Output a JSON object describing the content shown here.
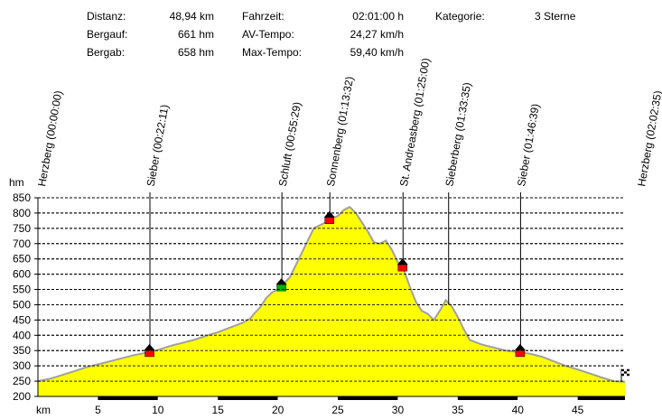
{
  "stats": {
    "distance_label": "Distanz:",
    "distance_value": "48,94 km",
    "ascent_label": "Bergauf:",
    "ascent_value": "661 hm",
    "descent_label": "Bergab:",
    "descent_value": "658 hm",
    "time_label": "Fahrzeit:",
    "time_value": "02:01:00 h",
    "avg_label": "AV-Tempo:",
    "avg_value": "24,27 km/h",
    "max_label": "Max-Tempo:",
    "max_value": "59,40 km/h",
    "category_label": "Kategorie:",
    "category_value": "3 Sterne"
  },
  "chart_data": {
    "type": "area",
    "xlabel": "km",
    "ylabel": "hm",
    "xlim": [
      0,
      48.94
    ],
    "ylim": [
      200,
      850
    ],
    "y_ticks": [
      200,
      250,
      300,
      350,
      400,
      450,
      500,
      550,
      600,
      650,
      700,
      750,
      800,
      850
    ],
    "x_ticks": [
      5,
      10,
      15,
      20,
      25,
      30,
      35,
      40,
      45
    ],
    "fill_color": "#ffff00",
    "line_color": "#a0a0a0",
    "profile": {
      "x": [
        0,
        1,
        2,
        3,
        4,
        5,
        6,
        7,
        8,
        9.3,
        10,
        11,
        12,
        13,
        14,
        15,
        16,
        17,
        17.7,
        18,
        18.5,
        19,
        19.5,
        20,
        20.3,
        21,
        21.5,
        22,
        22.5,
        23,
        24,
        24.3,
        25,
        25.5,
        26,
        26.5,
        27,
        27.5,
        28,
        28.5,
        29,
        29.5,
        30,
        30.4,
        31,
        31.5,
        32,
        32.5,
        33,
        33.5,
        34,
        34.5,
        35,
        35.5,
        36,
        37,
        38,
        39,
        40,
        41,
        42,
        43,
        44,
        45,
        46,
        47,
        48,
        48.94
      ],
      "y": [
        250,
        258,
        270,
        282,
        295,
        305,
        315,
        325,
        335,
        345,
        352,
        365,
        375,
        385,
        398,
        410,
        425,
        440,
        455,
        470,
        490,
        520,
        540,
        550,
        560,
        590,
        630,
        670,
        710,
        750,
        770,
        780,
        790,
        810,
        820,
        800,
        770,
        740,
        705,
        700,
        710,
        680,
        640,
        625,
        560,
        510,
        480,
        470,
        450,
        480,
        515,
        495,
        460,
        420,
        385,
        370,
        360,
        350,
        345,
        340,
        330,
        315,
        300,
        288,
        275,
        262,
        250,
        248
      ]
    },
    "waypoints": [
      {
        "label": "Herzberg (00:00:00)",
        "km": 0
      },
      {
        "label": "Sieber (00:22:11)",
        "km": 9.3,
        "elevation": 345,
        "marker": "red"
      },
      {
        "label": "Schluft (00:55:29)",
        "km": 20.3,
        "elevation": 560,
        "marker": "green"
      },
      {
        "label": "Sonnenberg (01:13:32)",
        "km": 24.3,
        "elevation": 780,
        "marker": "red"
      },
      {
        "label": "St. Andreasberg (01:25:00)",
        "km": 30.4,
        "elevation": 625,
        "marker": "red"
      },
      {
        "label": "Sieberberg (01:33:35)",
        "km": 34.2
      },
      {
        "label": "Sieber (01:46:39)",
        "km": 40.2,
        "elevation": 345,
        "marker": "red"
      },
      {
        "label": "Herzberg (02:02:35)",
        "km": 48.94,
        "elevation": 248,
        "marker": "finish"
      }
    ],
    "grid": true
  }
}
